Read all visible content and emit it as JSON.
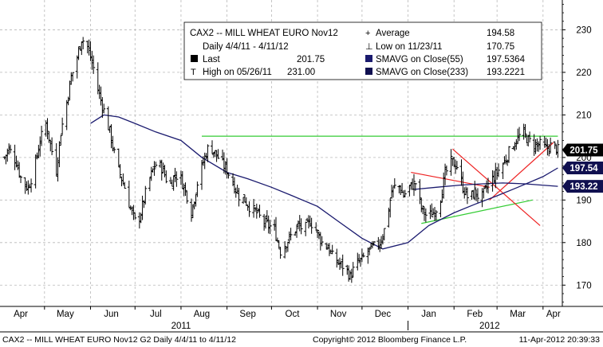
{
  "colors": {
    "background": "#ffffff",
    "grid": "#b8b8b8",
    "price": "#000000",
    "sma55": "#1a1a6e",
    "sma233": "#1a1a6e",
    "resistance_line": "#33cc33",
    "support_line": "#33cc33",
    "trend_red": "#ee2222",
    "label_last": "#000000",
    "label_sma": "#101050"
  },
  "legend": {
    "title": "CAX2 -- MILL WHEAT EURO  Nov12",
    "daily": "Daily 4/4/11 - 4/11/12",
    "last_label": "Last",
    "last_value": "201.75",
    "high_label": "High on 05/26/11",
    "high_value": "231.00",
    "avg_label": "Average",
    "avg_value": "194.58",
    "low_label": "Low on 11/23/11",
    "low_value": "170.75",
    "sma55_label": "SMAVG on Close(55)",
    "sma55_value": "197.5364",
    "sma233_label": "SMAVG on Close(233)",
    "sma233_value": "193.2221"
  },
  "footer": {
    "left": "CAX2 -- MILL WHEAT EURO  Nov12      G2  Daily  4/4/11 to 4/11/12",
    "mid": "Copyright© 2012 Bloomberg Finance L.P.",
    "right": "11-Apr-2012 20:39:33"
  },
  "chart_data": {
    "type": "line",
    "subtype": "ohlc-bars",
    "grid": true,
    "y_axis_side": "right",
    "ylim": [
      165,
      237
    ],
    "y_ticks": [
      170,
      180,
      190,
      200,
      210,
      220,
      230
    ],
    "x_range": [
      "2011-04-04",
      "2012-04-11"
    ],
    "month_labels": [
      {
        "label": "Apr",
        "date": "2011-04-15"
      },
      {
        "label": "May",
        "date": "2011-05-15"
      },
      {
        "label": "Jun",
        "date": "2011-06-15"
      },
      {
        "label": "Jul",
        "date": "2011-07-15"
      },
      {
        "label": "Aug",
        "date": "2011-08-15"
      },
      {
        "label": "Sep",
        "date": "2011-09-15"
      },
      {
        "label": "Oct",
        "date": "2011-10-15"
      },
      {
        "label": "Nov",
        "date": "2011-11-15"
      },
      {
        "label": "Dec",
        "date": "2011-12-15"
      },
      {
        "label": "Jan",
        "date": "2012-01-15"
      },
      {
        "label": "Feb",
        "date": "2012-02-15"
      },
      {
        "label": "Mar",
        "date": "2012-03-15"
      },
      {
        "label": "Apr",
        "date": "2012-04-08"
      }
    ],
    "month_boundaries": [
      "2011-05-01",
      "2011-06-01",
      "2011-07-01",
      "2011-08-01",
      "2011-09-01",
      "2011-10-01",
      "2011-11-01",
      "2011-12-01",
      "2012-01-01",
      "2012-02-01",
      "2012-03-01",
      "2012-04-01"
    ],
    "year_labels": [
      {
        "label": "2011",
        "date": "2011-08-01"
      },
      {
        "label": "2012",
        "date": "2012-02-25"
      }
    ],
    "year_divider": "2012-01-01",
    "price_path": [
      [
        "2011-04-04",
        200
      ],
      [
        "2011-04-07",
        202
      ],
      [
        "2011-04-12",
        199
      ],
      [
        "2011-04-16",
        194
      ],
      [
        "2011-04-20",
        193
      ],
      [
        "2011-04-24",
        197
      ],
      [
        "2011-04-28",
        204
      ],
      [
        "2011-05-02",
        208
      ],
      [
        "2011-05-05",
        203
      ],
      [
        "2011-05-09",
        197
      ],
      [
        "2011-05-12",
        206
      ],
      [
        "2011-05-16",
        213
      ],
      [
        "2011-05-19",
        219
      ],
      [
        "2011-05-22",
        222
      ],
      [
        "2011-05-26",
        228
      ],
      [
        "2011-05-30",
        226
      ],
      [
        "2011-06-03",
        221
      ],
      [
        "2011-06-06",
        216
      ],
      [
        "2011-06-10",
        211
      ],
      [
        "2011-06-14",
        206
      ],
      [
        "2011-06-17",
        201
      ],
      [
        "2011-06-20",
        197
      ],
      [
        "2011-06-24",
        193
      ],
      [
        "2011-06-28",
        188
      ],
      [
        "2011-07-02",
        184
      ],
      [
        "2011-07-05",
        187
      ],
      [
        "2011-07-09",
        193
      ],
      [
        "2011-07-13",
        197
      ],
      [
        "2011-07-16",
        199
      ],
      [
        "2011-07-20",
        197
      ],
      [
        "2011-07-24",
        193
      ],
      [
        "2011-07-28",
        196
      ],
      [
        "2011-08-01",
        195
      ],
      [
        "2011-08-05",
        191
      ],
      [
        "2011-08-08",
        187
      ],
      [
        "2011-08-12",
        194
      ],
      [
        "2011-08-16",
        199
      ],
      [
        "2011-08-20",
        203
      ],
      [
        "2011-08-24",
        201
      ],
      [
        "2011-08-28",
        199
      ],
      [
        "2011-09-01",
        197
      ],
      [
        "2011-09-05",
        194
      ],
      [
        "2011-09-09",
        191
      ],
      [
        "2011-09-13",
        190
      ],
      [
        "2011-09-17",
        188
      ],
      [
        "2011-09-21",
        187
      ],
      [
        "2011-09-25",
        185
      ],
      [
        "2011-09-29",
        184
      ],
      [
        "2011-10-03",
        183
      ],
      [
        "2011-10-07",
        178
      ],
      [
        "2011-10-11",
        180
      ],
      [
        "2011-10-15",
        182
      ],
      [
        "2011-10-19",
        184
      ],
      [
        "2011-10-23",
        183
      ],
      [
        "2011-10-27",
        185
      ],
      [
        "2011-10-31",
        183
      ],
      [
        "2011-11-04",
        180
      ],
      [
        "2011-11-08",
        179
      ],
      [
        "2011-11-12",
        176
      ],
      [
        "2011-11-16",
        175
      ],
      [
        "2011-11-20",
        174
      ],
      [
        "2011-11-23",
        172
      ],
      [
        "2011-11-27",
        175
      ],
      [
        "2011-12-01",
        176
      ],
      [
        "2011-12-05",
        178
      ],
      [
        "2011-12-09",
        179
      ],
      [
        "2011-12-13",
        180
      ],
      [
        "2011-12-17",
        184
      ],
      [
        "2011-12-21",
        192
      ],
      [
        "2011-12-25",
        194
      ],
      [
        "2011-12-29",
        191
      ],
      [
        "2012-01-02",
        193
      ],
      [
        "2012-01-06",
        194
      ],
      [
        "2012-01-10",
        188
      ],
      [
        "2012-01-14",
        186
      ],
      [
        "2012-01-18",
        187
      ],
      [
        "2012-01-22",
        189
      ],
      [
        "2012-01-26",
        196
      ],
      [
        "2012-01-30",
        199
      ],
      [
        "2012-02-03",
        198
      ],
      [
        "2012-02-07",
        193
      ],
      [
        "2012-02-11",
        190
      ],
      [
        "2012-02-15",
        192
      ],
      [
        "2012-02-19",
        190
      ],
      [
        "2012-02-23",
        193
      ],
      [
        "2012-02-27",
        195
      ],
      [
        "2012-03-02",
        197
      ],
      [
        "2012-03-06",
        199
      ],
      [
        "2012-03-10",
        202
      ],
      [
        "2012-03-14",
        204
      ],
      [
        "2012-03-18",
        206
      ],
      [
        "2012-03-22",
        204
      ],
      [
        "2012-03-26",
        203
      ],
      [
        "2012-03-30",
        203
      ],
      [
        "2012-04-03",
        202
      ],
      [
        "2012-04-07",
        203
      ],
      [
        "2012-04-11",
        201.75
      ]
    ],
    "series": [
      {
        "name": "SMAVG on Close(55)",
        "points": [
          [
            "2011-06-01",
            208
          ],
          [
            "2011-06-10",
            210
          ],
          [
            "2011-06-20",
            209.5
          ],
          [
            "2011-07-01",
            208
          ],
          [
            "2011-07-15",
            206
          ],
          [
            "2011-08-01",
            204
          ],
          [
            "2011-08-15",
            200
          ],
          [
            "2011-09-01",
            196.5
          ],
          [
            "2011-09-15",
            195
          ],
          [
            "2011-10-01",
            193
          ],
          [
            "2011-10-15",
            191
          ],
          [
            "2011-11-01",
            188.5
          ],
          [
            "2011-11-15",
            185
          ],
          [
            "2011-12-01",
            181
          ],
          [
            "2011-12-15",
            178.5
          ],
          [
            "2012-01-01",
            180
          ],
          [
            "2012-01-15",
            184
          ],
          [
            "2012-02-01",
            187
          ],
          [
            "2012-02-15",
            189
          ],
          [
            "2012-03-01",
            191
          ],
          [
            "2012-03-15",
            193
          ],
          [
            "2012-04-01",
            195.5
          ],
          [
            "2012-04-11",
            197.54
          ]
        ]
      },
      {
        "name": "SMAVG on Close(233)",
        "points": [
          [
            "2012-01-05",
            192.5
          ],
          [
            "2012-01-20",
            193
          ],
          [
            "2012-02-05",
            193.5
          ],
          [
            "2012-02-20",
            193.8
          ],
          [
            "2012-03-05",
            194
          ],
          [
            "2012-03-20",
            193.8
          ],
          [
            "2012-04-11",
            193.22
          ]
        ]
      }
    ],
    "drawn_lines": [
      {
        "kind": "resistance",
        "from": [
          "2011-08-15",
          205
        ],
        "to": [
          "2012-04-11",
          205
        ]
      },
      {
        "kind": "support",
        "from": [
          "2012-01-10",
          184.5
        ],
        "to": [
          "2012-03-25",
          190
        ]
      },
      {
        "kind": "trend",
        "from": [
          "2012-01-03",
          196.5
        ],
        "to": [
          "2012-02-25",
          193
        ]
      },
      {
        "kind": "trend",
        "from": [
          "2012-01-31",
          202
        ],
        "to": [
          "2012-03-30",
          184
        ]
      },
      {
        "kind": "trend",
        "from": [
          "2012-02-25",
          190
        ],
        "to": [
          "2012-04-08",
          203.5
        ]
      }
    ],
    "value_labels": [
      {
        "text": "201.75",
        "value": 201.75,
        "style": "last"
      },
      {
        "text": "197.54",
        "value": 197.54,
        "style": "sma"
      },
      {
        "text": "193.22",
        "value": 193.22,
        "style": "sma"
      }
    ]
  }
}
